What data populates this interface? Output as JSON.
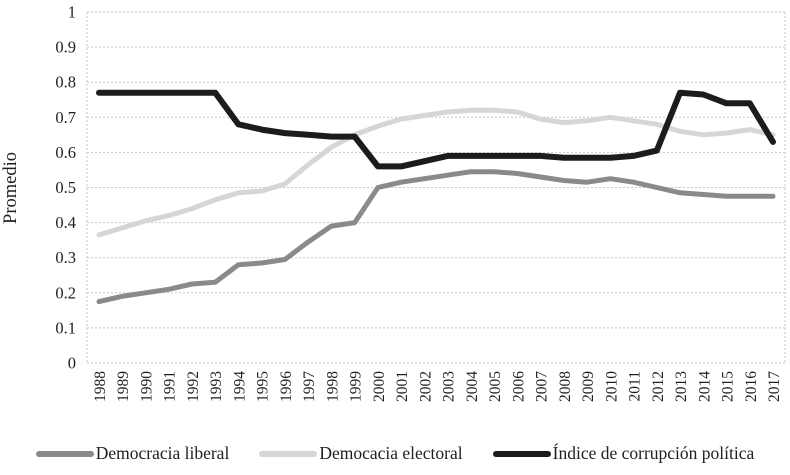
{
  "ui": {
    "ylabel": "Promedio",
    "legend": [
      {
        "label": "Democracia liberal",
        "color": "#8a8a8a"
      },
      {
        "label": "Democacia electoral",
        "color": "#d6d6d6"
      },
      {
        "label": "Índice de corrupción política",
        "color": "#1c1c1c"
      }
    ],
    "colors": {
      "grid": "#c6c6c6",
      "text": "#1f1f1f"
    }
  },
  "chart_data": {
    "type": "line",
    "title": "",
    "xlabel": "",
    "ylabel": "Promedio",
    "ylim": [
      0,
      1
    ],
    "ytick_step": 0.1,
    "ytick_labels": [
      "0",
      "0.1",
      "0.2",
      "0.3",
      "0.4",
      "0.5",
      "0.6",
      "0.7",
      "0.8",
      "0.9",
      "1"
    ],
    "grid": "horizontal dashed, dashed left/right plot borders",
    "legend_position": "bottom",
    "categories": [
      1988,
      1989,
      1990,
      1991,
      1992,
      1993,
      1994,
      1995,
      1996,
      1997,
      1998,
      1999,
      2000,
      2001,
      2002,
      2003,
      2004,
      2005,
      2006,
      2007,
      2008,
      2009,
      2010,
      2011,
      2012,
      2013,
      2014,
      2015,
      2016,
      2017
    ],
    "series": [
      {
        "name": "Democracia liberal",
        "color": "#8a8a8a",
        "stroke_width": 5,
        "values": [
          0.175,
          0.19,
          0.2,
          0.21,
          0.225,
          0.23,
          0.28,
          0.285,
          0.295,
          0.345,
          0.39,
          0.4,
          0.5,
          0.515,
          0.525,
          0.535,
          0.545,
          0.545,
          0.54,
          0.53,
          0.52,
          0.515,
          0.525,
          0.515,
          0.5,
          0.485,
          0.48,
          0.475,
          0.475,
          0.475
        ]
      },
      {
        "name": "Democacia electoral",
        "color": "#d6d6d6",
        "stroke_width": 5,
        "values": [
          0.365,
          0.385,
          0.405,
          0.42,
          0.44,
          0.465,
          0.485,
          0.49,
          0.51,
          0.565,
          0.615,
          0.65,
          0.675,
          0.695,
          0.705,
          0.715,
          0.72,
          0.72,
          0.715,
          0.695,
          0.685,
          0.69,
          0.7,
          0.69,
          0.68,
          0.66,
          0.65,
          0.655,
          0.665,
          0.65
        ]
      },
      {
        "name": "Índice de corrupción política",
        "color": "#1c1c1c",
        "stroke_width": 6,
        "values": [
          0.77,
          0.77,
          0.77,
          0.77,
          0.77,
          0.77,
          0.68,
          0.665,
          0.655,
          0.65,
          0.645,
          0.645,
          0.56,
          0.56,
          0.575,
          0.59,
          0.59,
          0.59,
          0.59,
          0.59,
          0.585,
          0.585,
          0.585,
          0.59,
          0.605,
          0.77,
          0.765,
          0.74,
          0.74,
          0.63
        ]
      }
    ]
  }
}
